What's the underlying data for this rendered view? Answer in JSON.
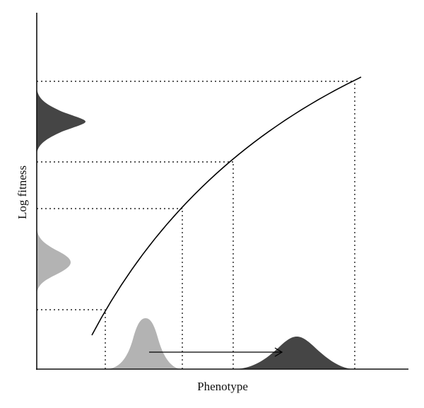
{
  "labels": {
    "x_axis": "Phenotype",
    "y_axis": "Log fitness"
  },
  "colors": {
    "ancestral_distribution": "#b3b3b3",
    "derived_distribution": "#454545",
    "ink": "#000000"
  },
  "diagram": {
    "curve_shape": "concave increasing",
    "distributions": [
      {
        "name": "ancestral",
        "axis": "phenotype",
        "color": "light-gray"
      },
      {
        "name": "derived",
        "axis": "phenotype",
        "color": "dark-gray"
      },
      {
        "name": "ancestral",
        "axis": "log-fitness",
        "color": "light-gray"
      },
      {
        "name": "derived",
        "axis": "log-fitness",
        "color": "dark-gray"
      }
    ],
    "arrow": {
      "from": "ancestral",
      "to": "derived",
      "direction": "right"
    }
  }
}
